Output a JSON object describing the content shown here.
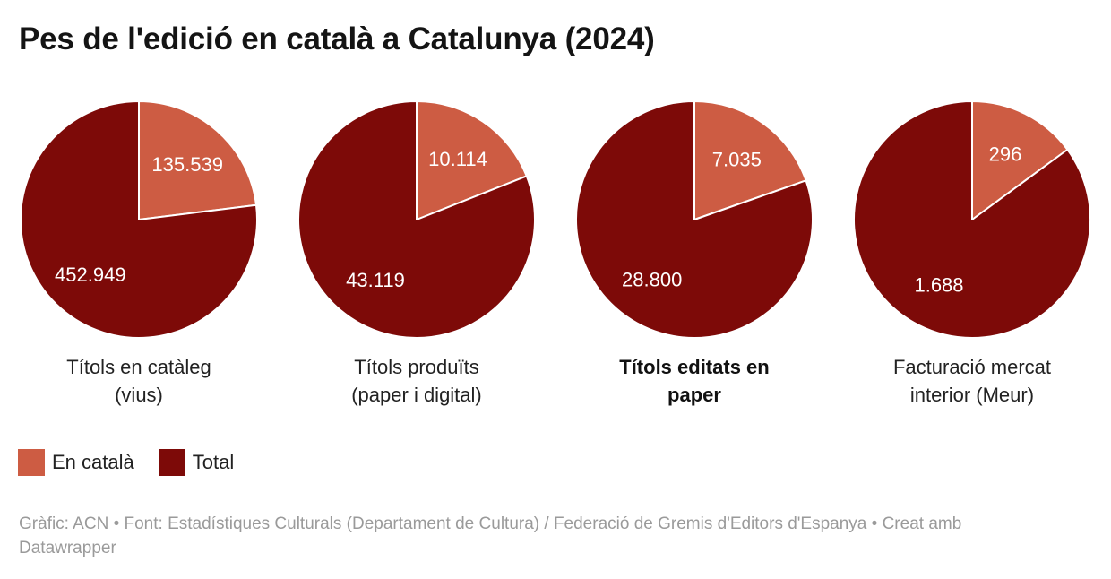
{
  "title": "Pes de l'edició en català a Catalunya (2024)",
  "legend": {
    "items": [
      {
        "label": "En català",
        "color": "#cd5c43"
      },
      {
        "label": "Total",
        "color": "#7d0a08"
      }
    ]
  },
  "footer": {
    "line1": "Gràfic: ACN • Font: Estadístiques Culturals (Departament de Cultura) / Federació de Gremis d'Editors d'Espanya • Creat amb",
    "line2": "Datawrapper",
    "full_text": "Gràfic: ACN • Font: Estadístiques Culturals (Departament de Cultura) / Federació de Gremis d'Editors d'Espanya • Creat amb Datawrapper"
  },
  "chart_data": {
    "type": "pie",
    "title": "Pes de l'edició en català a Catalunya (2024)",
    "series_labels": [
      "En català",
      "Total"
    ],
    "colors": {
      "en_catala": "#cd5c43",
      "total": "#7d0a08"
    },
    "start_angle_deg": 0,
    "direction": "clockwise",
    "slice_divider_color": "#ffffff",
    "pies": [
      {
        "caption": "Títols en catàleg (vius)",
        "caption_lines": [
          "Títols en catàleg",
          "(vius)"
        ],
        "caption_bold": false,
        "en_catala": 135539,
        "total": 452949,
        "en_catala_label": "135.539",
        "total_label": "452.949"
      },
      {
        "caption": "Títols produïts (paper i digital)",
        "caption_lines": [
          "Títols produïts",
          "(paper i digital)"
        ],
        "caption_bold": false,
        "en_catala": 10114,
        "total": 43119,
        "en_catala_label": "10.114",
        "total_label": "43.119"
      },
      {
        "caption": "Títols editats en paper",
        "caption_lines": [
          "Títols editats en",
          "paper"
        ],
        "caption_bold": true,
        "en_catala": 7035,
        "total": 28800,
        "en_catala_label": "7.035",
        "total_label": "28.800"
      },
      {
        "caption": "Facturació mercat interior (Meur)",
        "caption_lines": [
          "Facturació mercat",
          "interior (Meur)"
        ],
        "caption_bold": false,
        "en_catala": 296,
        "total": 1688,
        "en_catala_label": "296",
        "total_label": "1.688"
      }
    ]
  }
}
